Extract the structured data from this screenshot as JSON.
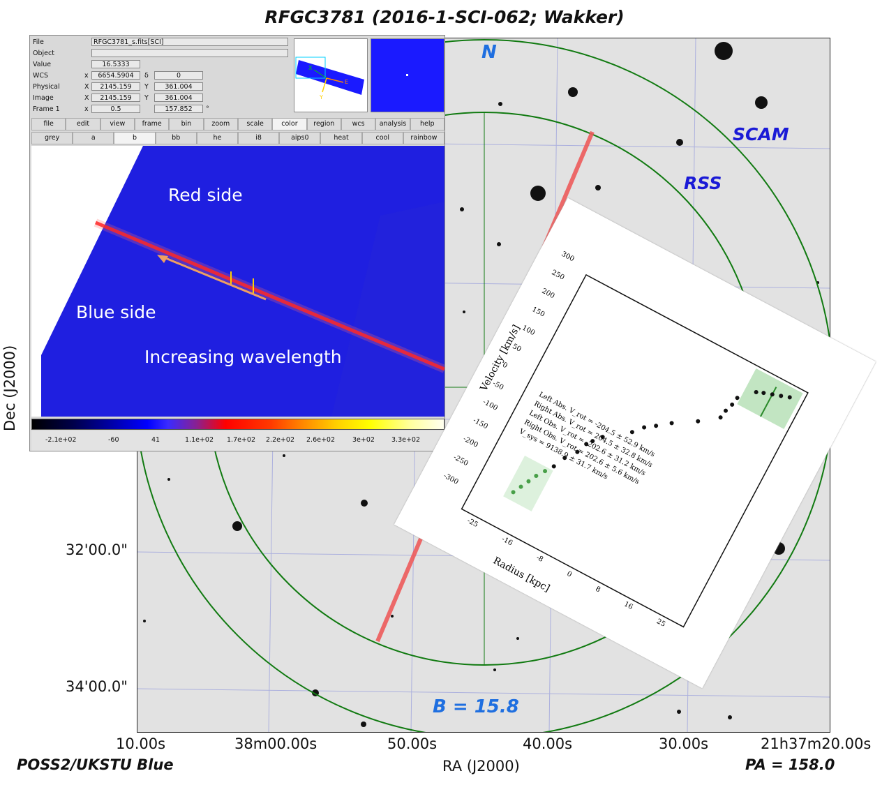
{
  "title": "RFGC3781 (2016-1-SCI-062; Wakker)",
  "survey": "POSS2/UKSTU Blue",
  "pa": "PA = 158.0",
  "magnitude": "B = 15.8",
  "compass_n": "N",
  "scam_label": "SCAM",
  "rss_label": "RSS",
  "xaxis_label": "RA (J2000)",
  "yaxis_label": "Dec (J2000)",
  "ra_ticks": [
    "10.00s",
    "38m00.00s",
    "50.00s",
    "40.00s",
    "30.00s",
    "21h37m20.00s"
  ],
  "dec_ticks": [
    "32'00.0\"",
    "34'00.0\""
  ],
  "colors": {
    "overlay_blue": "#1f6fe0",
    "overlay_darkblue": "#1a1ad6",
    "slit": "#ee5b5b",
    "circle": "#117a11"
  },
  "ds9": {
    "info": [
      {
        "label": "File",
        "v1": "RFGC3781_s.fits[SCI]"
      },
      {
        "label": "Object",
        "v1": ""
      },
      {
        "label": "Value",
        "v1": "16.5333"
      },
      {
        "label": "WCS",
        "x": "x",
        "v1": "6654.5904",
        "y": "δ",
        "v2": "0"
      },
      {
        "label": "Physical",
        "x": "X",
        "v1": "2145.159",
        "y": "Y",
        "v2": "361.004"
      },
      {
        "label": "Image",
        "x": "X",
        "v1": "2145.159",
        "y": "Y",
        "v2": "361.004"
      },
      {
        "label": "Frame 1",
        "x": "x",
        "v1": "0.5",
        "v2": "157.852",
        "unit": "°"
      }
    ],
    "menu": [
      "file",
      "edit",
      "view",
      "frame",
      "bin",
      "zoom",
      "scale",
      "color",
      "region",
      "wcs",
      "analysis",
      "help"
    ],
    "colormaps": [
      "grey",
      "a",
      "b",
      "bb",
      "he",
      "i8",
      "aips0",
      "heat",
      "cool",
      "rainbow"
    ],
    "panner_labels": {
      "x": "X",
      "e": "E",
      "y": "Y"
    },
    "spectrum_labels": {
      "red": "Red side",
      "blue": "Blue side",
      "arrow": "Increasing wavelength"
    },
    "colorbar_ticks": [
      "-2.1e+02",
      "-60",
      "41",
      "1.1e+02",
      "1.7e+02",
      "2.2e+02",
      "2.6e+02",
      "3e+02",
      "3.3e+02"
    ]
  },
  "rotation_curve": {
    "xlabel": "Radius [kpc]",
    "ylabel": "Velocity [km/s]",
    "xticks": [
      "-25",
      "-16",
      "-8",
      "0",
      "8",
      "16",
      "25"
    ],
    "yticks": [
      "300",
      "250",
      "200",
      "150",
      "100",
      "50",
      "0",
      "-50",
      "-100",
      "-150",
      "-200",
      "-250",
      "-300"
    ],
    "legend": [
      "Left Abs. V_rot = -204.5 ± 52.9 km/s",
      "Right Abs. V_rot = 204.5 ± 32.8 km/s",
      "Left Obs. V_rot = -202.6 ± 31.2 km/s",
      "Right Obs. V_rot = 202.6 ± 5.6 km/s",
      "V_sys = 9138.9 ± 31.7 km/s"
    ]
  }
}
